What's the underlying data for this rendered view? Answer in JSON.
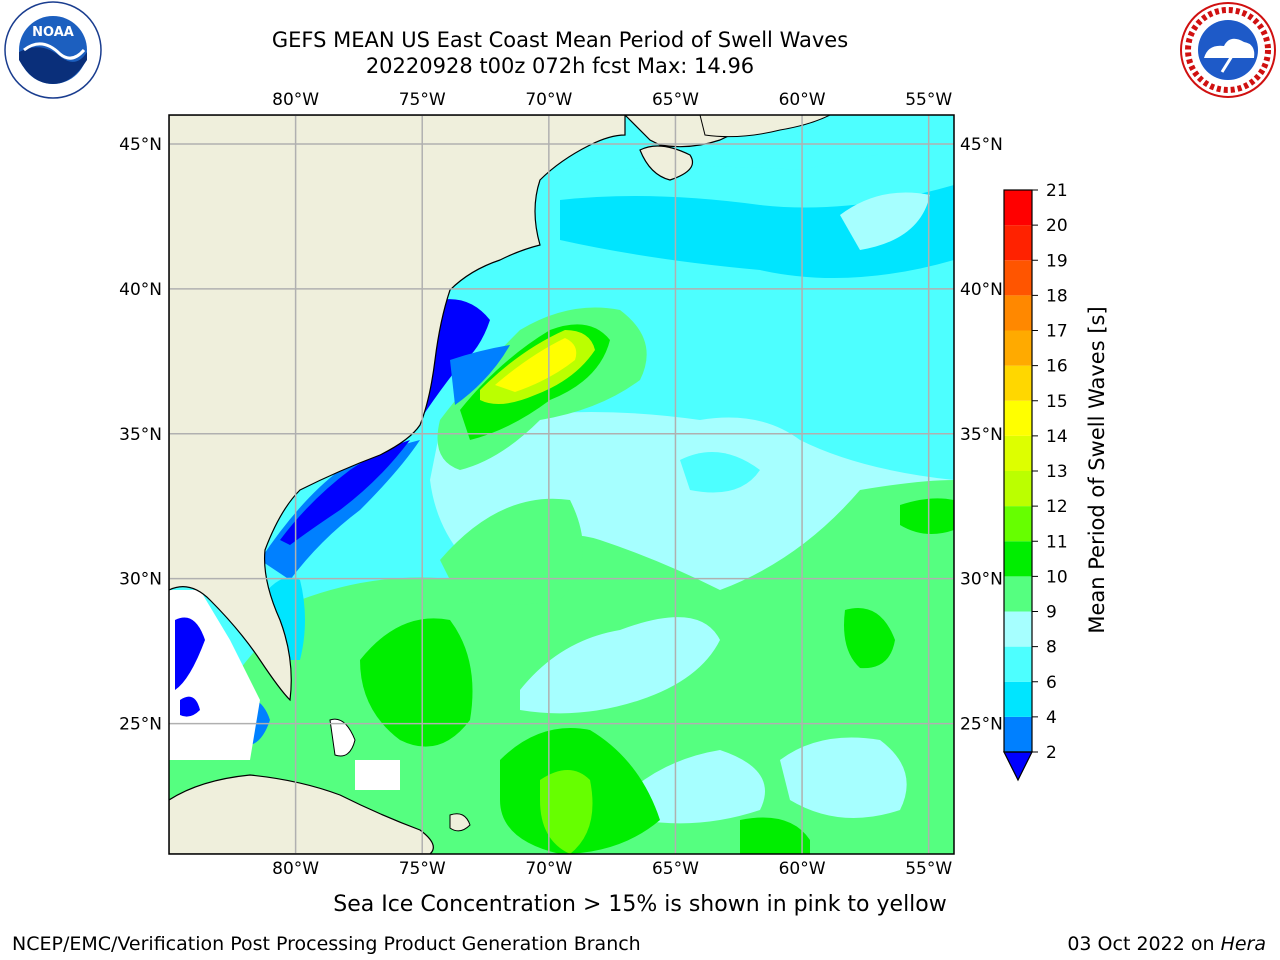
{
  "title": {
    "line1": "GEFS MEAN US East Coast Mean Period of Swell Waves",
    "line2": "20220928 t00z 072h fcst   Max: 14.96"
  },
  "map": {
    "lon_labels_top": [
      "80°W",
      "75°W",
      "70°W",
      "65°W",
      "60°W",
      "55°W"
    ],
    "lon_labels_bottom": [
      "80°W",
      "75°W",
      "70°W",
      "65°W",
      "60°W",
      "55°W"
    ],
    "lat_labels_left": [
      "45°N",
      "40°N",
      "35°N",
      "30°N",
      "25°N"
    ],
    "lat_labels_right": [
      "45°N",
      "40°N",
      "35°N",
      "30°N",
      "25°N"
    ],
    "lon_range": [
      -85,
      -54
    ],
    "lat_range": [
      20.5,
      46
    ]
  },
  "colorbar": {
    "label": "Mean Period of Swell Waves [s]",
    "ticks": [
      "2",
      "4",
      "6",
      "8",
      "9",
      "10",
      "11",
      "12",
      "13",
      "14",
      "15",
      "16",
      "17",
      "18",
      "19",
      "20",
      "21"
    ],
    "colors": [
      "#0000ff",
      "#0080ff",
      "#00e5ff",
      "#4dffff",
      "#a6ffff",
      "#55ff80",
      "#00ee00",
      "#66ff00",
      "#bbff00",
      "#ddff00",
      "#ffff00",
      "#ffd700",
      "#ffaa00",
      "#ff8800",
      "#ff5500",
      "#ff2200",
      "#ff0000"
    ]
  },
  "legend_colors": {
    "land": "#efefdc",
    "grid": "#b0b0b0"
  },
  "footer": {
    "sea_ice_note": "Sea Ice Concentration > 15% is shown in pink to yellow",
    "branch": "NCEP/EMC/Verification Post Processing Product Generation Branch",
    "date": "03 Oct 2022 on",
    "machine": "Hera"
  },
  "logos": {
    "left": "noaa-logo",
    "right": "nws-logo",
    "left_text": "NOAA"
  }
}
